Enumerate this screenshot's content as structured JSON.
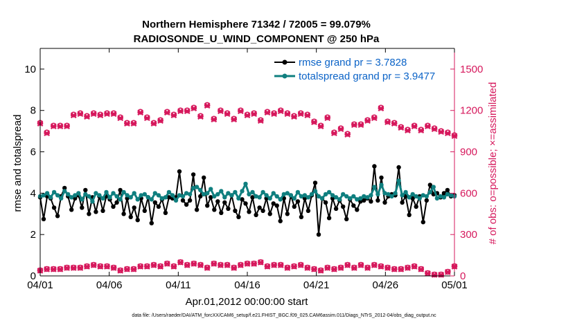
{
  "chart_data": {
    "type": "line",
    "title": "Northern Hemisphere 71342 / 72005 = 99.079%",
    "subtitle": "RADIOSONDE_U_WIND_COMPONENT @ 250 hPa",
    "xlabel": "Apr.01,2012 00:00:00 start",
    "ylabel": "rmse and totalspread",
    "y2label": "# of obs: o=possible; ×=assimilated",
    "footer": "data file: /Users/raeder/DAI/ATM_forcXX/CAM6_setup/f.e21.FHIST_BGC.f09_025.CAM6assim.011/Diags_NTrS_2012-04/obs_diag_output.nc",
    "xlim": [
      0,
      30
    ],
    "ylim": [
      0,
      11
    ],
    "y2lim": [
      0,
      1650
    ],
    "x_ticks": [
      0,
      5,
      10,
      15,
      20,
      25,
      30
    ],
    "x_tick_labels": [
      "04/01",
      "04/06",
      "04/11",
      "04/16",
      "04/21",
      "04/26",
      "05/01"
    ],
    "y_ticks": [
      0,
      2,
      4,
      6,
      8,
      10
    ],
    "y_tick_labels": [
      "0",
      "2",
      "4",
      "6",
      "8",
      "10"
    ],
    "y2_ticks": [
      0,
      300,
      600,
      900,
      1200,
      1500
    ],
    "y2_tick_labels": [
      "0",
      "300",
      "600",
      "900",
      "1200",
      "1500"
    ],
    "series": [
      {
        "name": "rmse grand pr = 3.7828",
        "color": "#000000",
        "axis": "left",
        "marker": "circle",
        "values": [
          3.8,
          2.75,
          3.85,
          3.75,
          3.3,
          2.9,
          3.85,
          4.25,
          3.85,
          3.2,
          3.75,
          3.9,
          3.3,
          4.15,
          3.0,
          3.8,
          3.1,
          3.85,
          3.15,
          3.85,
          3.7,
          3.35,
          3.55,
          4.15,
          3.0,
          3.75,
          2.85,
          3.3,
          2.7,
          3.75,
          3.15,
          3.8,
          2.55,
          3.55,
          3.35,
          3.7,
          3.05,
          3.8,
          3.75,
          3.8,
          5.05,
          3.65,
          3.45,
          3.65,
          4.9,
          3.2,
          3.85,
          4.75,
          3.4,
          3.8,
          3.2,
          3.6,
          3.05,
          3.55,
          3.25,
          3.9,
          3.15,
          2.85,
          3.7,
          3.5,
          3.1,
          3.8,
          2.95,
          3.3,
          3.15,
          3.75,
          3.0,
          3.5,
          3.4,
          2.65,
          3.75,
          3.0,
          3.9,
          3.35,
          3.6,
          2.85,
          3.75,
          3.15,
          3.9,
          4.5,
          2.0,
          3.75,
          3.55,
          2.8,
          3.75,
          3.25,
          3.65,
          3.35,
          2.75,
          3.7,
          3.4,
          3.2,
          3.6,
          3.65,
          3.75,
          3.6,
          5.3,
          3.65,
          4.75,
          3.55,
          3.85,
          3.95,
          3.9,
          5.25,
          3.55,
          3.85,
          2.95,
          3.75,
          3.35,
          3.85,
          2.6,
          3.65,
          4.4,
          3.95,
          4.0,
          3.8,
          4.0,
          4.15,
          3.85,
          3.9
        ]
      },
      {
        "name": "totalspread grand pr = 3.9477",
        "color": "#0f7f7f",
        "axis": "left",
        "marker": "circle",
        "values": [
          3.85,
          3.9,
          4.0,
          3.8,
          4.05,
          3.9,
          3.75,
          4.1,
          3.95,
          3.8,
          3.9,
          4.0,
          3.7,
          3.95,
          3.85,
          3.6,
          4.0,
          3.9,
          3.75,
          4.05,
          3.8,
          4.0,
          3.85,
          3.7,
          4.05,
          3.9,
          3.8,
          4.0,
          3.7,
          3.9,
          3.95,
          3.8,
          3.7,
          4.0,
          3.9,
          3.75,
          3.8,
          4.05,
          3.9,
          3.65,
          3.9,
          3.85,
          4.0,
          3.95,
          4.25,
          4.3,
          4.15,
          3.95,
          4.0,
          4.2,
          3.85,
          3.95,
          4.1,
          3.8,
          4.0,
          3.9,
          4.05,
          3.75,
          4.1,
          4.45,
          3.95,
          4.05,
          3.85,
          3.8,
          4.05,
          3.9,
          3.75,
          4.0,
          3.85,
          3.7,
          3.95,
          4.0,
          3.9,
          3.75,
          4.05,
          3.85,
          3.9,
          3.8,
          3.95,
          4.1,
          3.85,
          3.75,
          3.95,
          4.05,
          3.9,
          3.8,
          3.7,
          3.95,
          3.85,
          3.75,
          3.85,
          3.7,
          3.75,
          3.85,
          3.8,
          3.9,
          4.3,
          3.95,
          4.4,
          4.0,
          3.95,
          3.85,
          4.0,
          4.6,
          3.9,
          4.05,
          3.8,
          3.95,
          3.85,
          3.75,
          3.9,
          3.85,
          4.05,
          4.3,
          3.75,
          3.85,
          3.8,
          3.95,
          3.9,
          3.85
        ]
      },
      {
        "name": "obs possible (upper)",
        "color": "#d6185c",
        "axis": "right",
        "marker": "o",
        "values": [
          1110,
          1040,
          1090,
          1090,
          1090,
          1170,
          1180,
          1160,
          1180,
          1170,
          1180,
          1180,
          1150,
          1110,
          1110,
          1190,
          1150,
          1110,
          1130,
          1190,
          1170,
          1200,
          1200,
          1220,
          1160,
          1240,
          1140,
          1200,
          1180,
          1140,
          1200,
          1170,
          1180,
          1130,
          1190,
          1180,
          1200,
          1180,
          1160,
          1180,
          1170,
          1120,
          1090,
          1150,
          1040,
          1070,
          1030,
          1100,
          1100,
          1130,
          1150,
          1220,
          1120,
          1110,
          1080,
          1060,
          1090,
          1060,
          1090,
          1070,
          1050,
          1040,
          1020
        ]
      },
      {
        "name": "obs assimilated (upper)",
        "color": "#d6185c",
        "axis": "right",
        "marker": "x",
        "values": [
          1105,
          1035,
          1085,
          1085,
          1085,
          1165,
          1175,
          1155,
          1175,
          1165,
          1175,
          1175,
          1145,
          1105,
          1105,
          1185,
          1145,
          1105,
          1125,
          1185,
          1165,
          1195,
          1195,
          1215,
          1155,
          1235,
          1135,
          1195,
          1175,
          1135,
          1195,
          1165,
          1175,
          1125,
          1185,
          1175,
          1195,
          1175,
          1155,
          1175,
          1165,
          1115,
          1085,
          1145,
          1035,
          1065,
          1025,
          1095,
          1095,
          1125,
          1145,
          1215,
          1115,
          1105,
          1075,
          1055,
          1085,
          1055,
          1085,
          1065,
          1045,
          1035,
          1015
        ]
      },
      {
        "name": "obs possible (lower)",
        "color": "#d6185c",
        "axis": "right",
        "marker": "o",
        "values": [
          40,
          50,
          50,
          50,
          60,
          60,
          60,
          70,
          80,
          70,
          70,
          60,
          40,
          50,
          50,
          70,
          70,
          80,
          70,
          90,
          70,
          100,
          80,
          90,
          80,
          60,
          90,
          80,
          80,
          60,
          80,
          90,
          90,
          100,
          70,
          80,
          80,
          60,
          70,
          80,
          60,
          50,
          40,
          60,
          50,
          60,
          80,
          60,
          80,
          60,
          80,
          70,
          60,
          50,
          50,
          60,
          70,
          50,
          20,
          10,
          10,
          30,
          70
        ]
      },
      {
        "name": "obs assimilated (lower)",
        "color": "#d6185c",
        "axis": "right",
        "marker": "x",
        "values": [
          38,
          48,
          48,
          48,
          58,
          58,
          58,
          68,
          78,
          68,
          68,
          58,
          38,
          48,
          48,
          68,
          68,
          78,
          68,
          88,
          68,
          98,
          78,
          88,
          78,
          58,
          88,
          78,
          78,
          58,
          78,
          88,
          88,
          98,
          68,
          78,
          78,
          58,
          68,
          78,
          58,
          48,
          38,
          58,
          48,
          58,
          78,
          58,
          78,
          58,
          78,
          68,
          58,
          48,
          48,
          58,
          68,
          48,
          18,
          8,
          8,
          28,
          68
        ]
      }
    ],
    "legend": [
      "rmse grand pr = 3.7828",
      "totalspread grand pr = 3.9477"
    ],
    "legend_position": "top-right"
  }
}
